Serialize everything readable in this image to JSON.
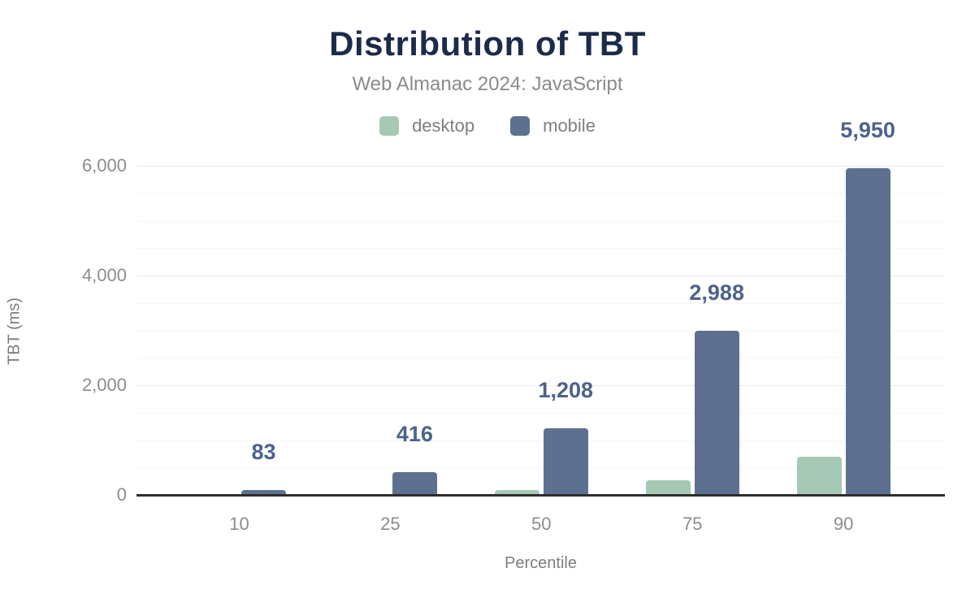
{
  "title": "Distribution of TBT",
  "subtitle": "Web Almanac 2024: JavaScript",
  "legend": {
    "items": [
      {
        "label": "desktop",
        "color": "#a6c9b5"
      },
      {
        "label": "mobile",
        "color": "#5e7090"
      }
    ]
  },
  "colors": {
    "title": "#1c2b4a",
    "subtitle": "#8a8a8a",
    "desktop_bar": "#a6c9b5",
    "mobile_bar": "#5e7090",
    "value_label": "#4d628b",
    "axis_line": "#2d2d2d",
    "major_gridline": "#eaeaea",
    "minor_gridline": "#f6f6f6",
    "tick_label": "#8c8c8c"
  },
  "chart_data": {
    "type": "bar",
    "title": "Distribution of TBT",
    "subtitle": "Web Almanac 2024: JavaScript",
    "categories": [
      "10",
      "25",
      "50",
      "75",
      "90"
    ],
    "xlabel": "Percentile",
    "ylabel": "TBT (ms)",
    "ylim": [
      0,
      6000
    ],
    "yticks": [
      0,
      2000,
      4000,
      6000
    ],
    "ytick_labels": [
      "0",
      "2,000",
      "4,000",
      "6,000"
    ],
    "minor_gridline_interval": 500,
    "major_gridline_interval": 2000,
    "grid": true,
    "legend_position": "top",
    "series": [
      {
        "name": "desktop",
        "color": "#a6c9b5",
        "values": [
          0,
          0,
          85,
          270,
          690
        ],
        "note": "values not labeled in chart; estimated from bar heights"
      },
      {
        "name": "mobile",
        "color": "#5e7090",
        "values": [
          83,
          416,
          1208,
          2988,
          5950
        ],
        "data_labels": [
          "83",
          "416",
          "1,208",
          "2,988",
          "5,950"
        ]
      }
    ]
  }
}
